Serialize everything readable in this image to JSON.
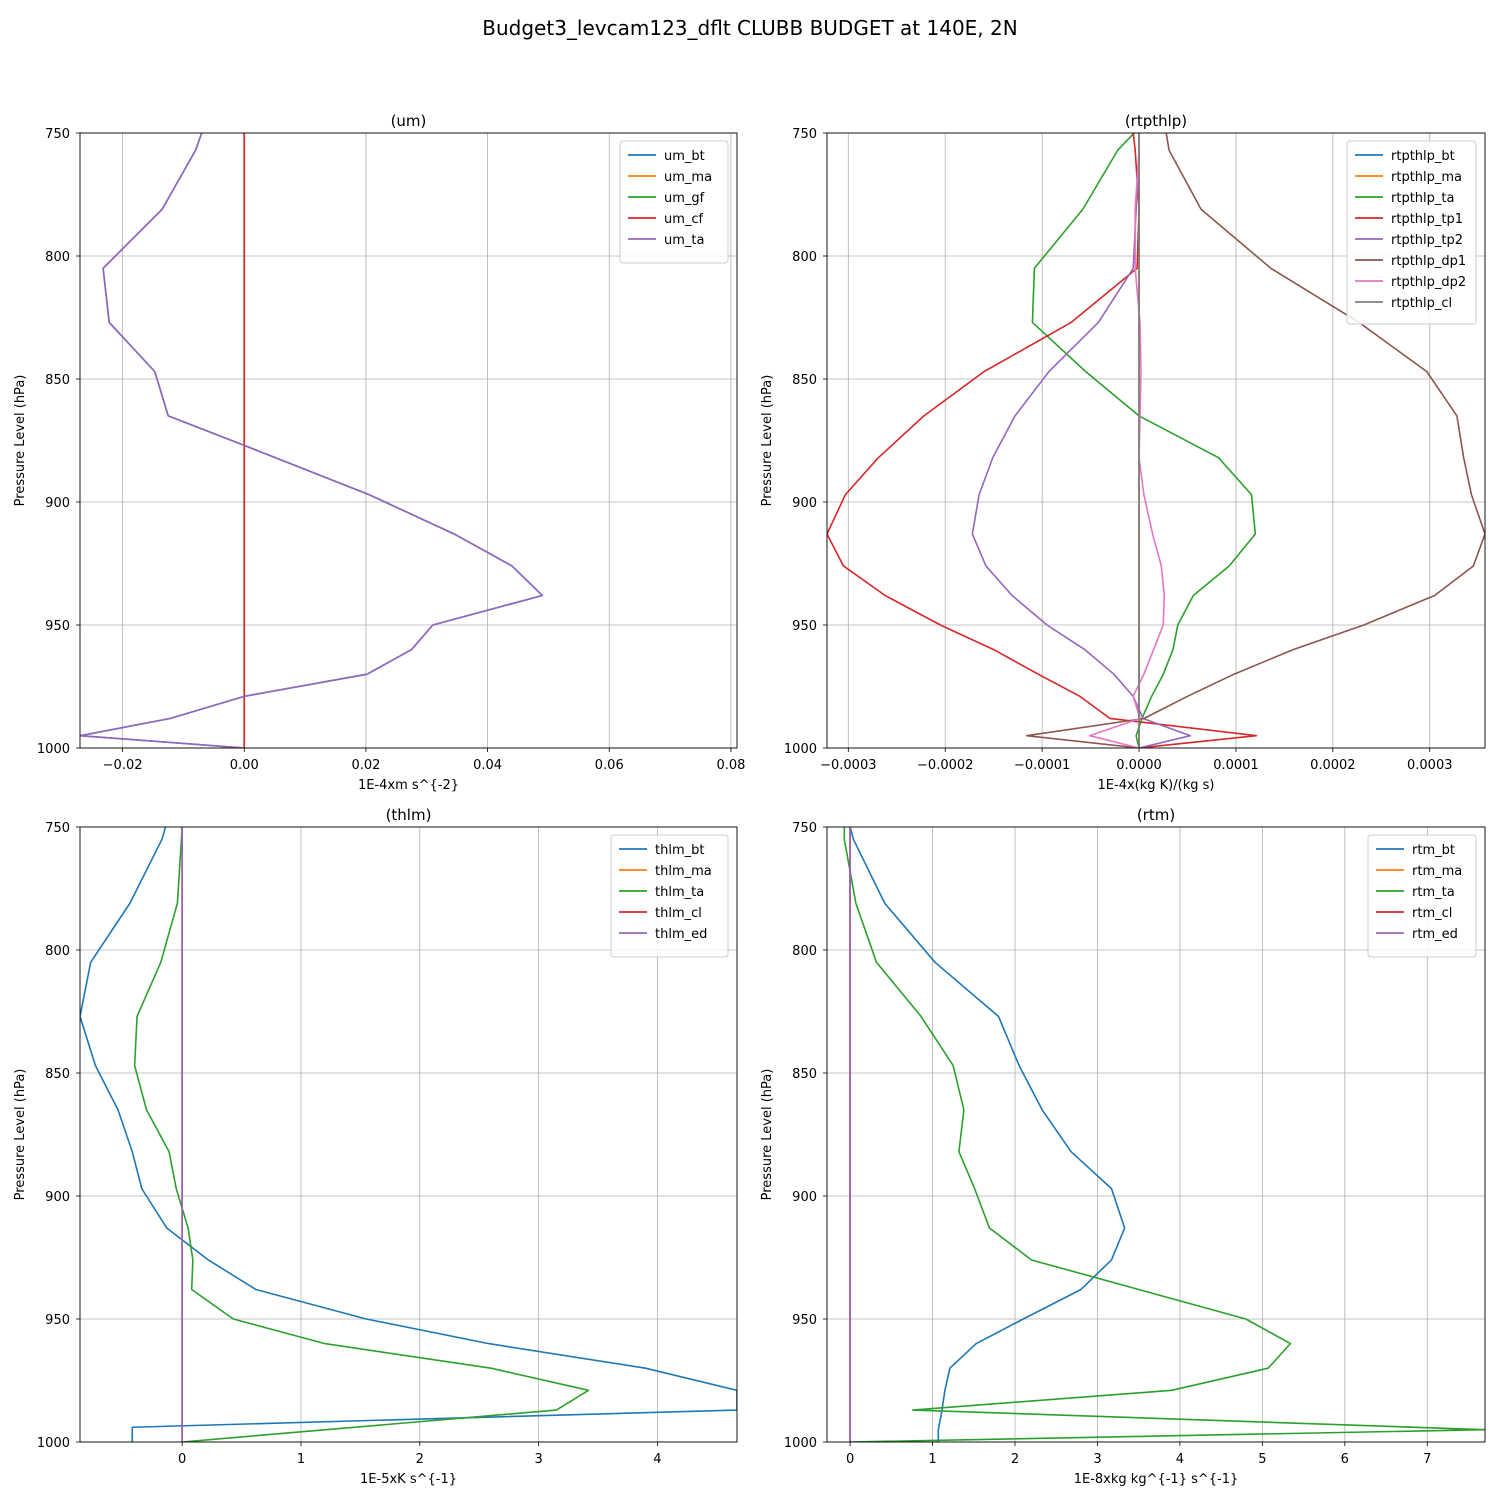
{
  "title": "Budget3_levcam123_dflt CLUBB BUDGET at 140E, 2N",
  "colors": {
    "blue": "#1f77b4",
    "orange": "#ff7f0e",
    "green": "#2ca02c",
    "red": "#d62728",
    "purple": "#9467bd",
    "brown": "#8c564b",
    "pink": "#e377c2",
    "gray": "#7f7f7f"
  },
  "chart_data": [
    {
      "type": "line",
      "title": "(um)",
      "xlabel": "1E-4xm s^{-2}",
      "ylabel": "Pressure Level (hPa)",
      "xlim": [
        -0.027,
        0.081
      ],
      "ylim": [
        1000,
        750
      ],
      "xticks": [
        -0.02,
        0.0,
        0.02,
        0.04,
        0.06,
        0.08
      ],
      "xtick_labels": [
        "−0.02",
        "0.00",
        "0.02",
        "0.04",
        "0.06",
        "0.08"
      ],
      "yticks": [
        750,
        800,
        850,
        900,
        950,
        1000
      ],
      "ytick_labels": [
        "750",
        "800",
        "850",
        "900",
        "950",
        "1000"
      ],
      "grid": true,
      "legend": "top-right",
      "y": [
        750,
        757,
        781,
        805,
        827,
        847,
        865,
        877,
        897,
        913,
        926,
        938,
        950,
        960,
        970,
        979,
        988,
        995,
        1000
      ],
      "series": [
        {
          "name": "um_bt",
          "color": "blue",
          "x": [
            -0.007,
            -0.008,
            -0.0135,
            -0.0232,
            -0.0222,
            -0.0147,
            -0.0125,
            0.0,
            0.0205,
            0.0345,
            0.044,
            0.049,
            0.031,
            0.0275,
            0.0202,
            0.0,
            -0.0122,
            -0.027,
            0.0
          ]
        },
        {
          "name": "um_ma",
          "color": "orange",
          "x": [
            0,
            0,
            0,
            0,
            0,
            0,
            0,
            0,
            0,
            0,
            0,
            0,
            0,
            0,
            0,
            0,
            0,
            0,
            0
          ]
        },
        {
          "name": "um_gf",
          "color": "green",
          "x": [
            0,
            0,
            0,
            0,
            0,
            0,
            0,
            0,
            0,
            0,
            0,
            0,
            0,
            0,
            0,
            0,
            0,
            0,
            0
          ]
        },
        {
          "name": "um_cf",
          "color": "red",
          "x": [
            0,
            0,
            0,
            0,
            0,
            0,
            0,
            0,
            0,
            0,
            0,
            0,
            0,
            0,
            0,
            0,
            0,
            0,
            0
          ]
        },
        {
          "name": "um_ta",
          "color": "purple",
          "x": [
            -0.007,
            -0.008,
            -0.0135,
            -0.0232,
            -0.0222,
            -0.0147,
            -0.0125,
            0.0,
            0.0205,
            0.0345,
            0.044,
            0.049,
            0.031,
            0.0275,
            0.0202,
            0.0,
            -0.0122,
            -0.027,
            0.0
          ]
        }
      ]
    },
    {
      "type": "line",
      "title": "(rtpthlp)",
      "xlabel": "1E-4x(kg K)/(kg s)",
      "ylabel": "Pressure Level (hPa)",
      "xlim": [
        -0.000322,
        0.000357
      ],
      "ylim": [
        1000,
        750
      ],
      "xticks": [
        -0.0003,
        -0.0002,
        -0.0001,
        0.0,
        0.0001,
        0.0002,
        0.0003
      ],
      "xtick_labels": [
        "−0.0003",
        "−0.0002",
        "−0.0001",
        "0.0000",
        "0.0001",
        "0.0002",
        "0.0003"
      ],
      "yticks": [
        750,
        800,
        850,
        900,
        950,
        1000
      ],
      "ytick_labels": [
        "750",
        "800",
        "850",
        "900",
        "950",
        "1000"
      ],
      "grid": true,
      "legend": "top-right",
      "y": [
        750,
        757,
        781,
        805,
        827,
        847,
        865,
        882,
        897,
        913,
        926,
        938,
        950,
        960,
        970,
        979,
        988,
        995,
        1000
      ],
      "series": [
        {
          "name": "rtpthlp_bt",
          "color": "blue",
          "x": [
            0,
            0,
            0,
            0,
            0,
            0,
            0,
            0,
            0,
            0,
            0,
            0,
            0,
            0,
            0,
            0,
            0,
            0,
            0
          ]
        },
        {
          "name": "rtpthlp_ma",
          "color": "orange",
          "x": [
            0,
            0,
            0,
            0,
            0,
            0,
            0,
            0,
            0,
            0,
            0,
            0,
            0,
            0,
            0,
            0,
            0,
            0,
            0
          ]
        },
        {
          "name": "rtpthlp_ta",
          "color": "green",
          "x": [
            -5e-06,
            -2.2e-05,
            -5.8e-05,
            -0.000108,
            -0.00011,
            -5.5e-05,
            0.0,
            8.2e-05,
            0.000116,
            0.00012,
            9.3e-05,
            5.6e-05,
            4e-05,
            3.5e-05,
            2.5e-05,
            1.3e-05,
            3e-06,
            -3e-06,
            0.0
          ]
        },
        {
          "name": "rtpthlp_tp1",
          "color": "red",
          "x": [
            -6e-06,
            -4e-06,
            0.0,
            -2e-06,
            -7e-05,
            -0.00016,
            -0.000222,
            -0.000269,
            -0.000303,
            -0.000322,
            -0.000305,
            -0.000262,
            -0.000205,
            -0.00015,
            -0.000104,
            -6.1e-05,
            -3e-05,
            0.000121,
            0.0
          ]
        },
        {
          "name": "rtpthlp_tp2",
          "color": "purple",
          "x": [
            0.0,
            0.0,
            -3e-06,
            -6e-06,
            -4.2e-05,
            -9.3e-05,
            -0.000128,
            -0.000151,
            -0.000165,
            -0.000172,
            -0.000158,
            -0.000131,
            -9.5e-05,
            -5.6e-05,
            -2.6e-05,
            -6e-06,
            4e-06,
            5.3e-05,
            0.0
          ]
        },
        {
          "name": "rtpthlp_dp1",
          "color": "brown",
          "x": [
            2.8e-05,
            3.1e-05,
            6.4e-05,
            0.000136,
            0.000227,
            0.000297,
            0.000328,
            0.000335,
            0.000343,
            0.000357,
            0.000345,
            0.000305,
            0.000232,
            0.000159,
            9.8e-05,
            5e-05,
            5e-06,
            -0.000116,
            0.0
          ]
        },
        {
          "name": "rtpthlp_dp2",
          "color": "pink",
          "x": [
            0.0,
            0.0,
            -4e-06,
            -4e-06,
            1e-06,
            2e-06,
            1e-06,
            0.0,
            5e-06,
            1.4e-05,
            2.3e-05,
            2.6e-05,
            2.5e-05,
            1.5e-05,
            5e-06,
            -6e-06,
            1e-06,
            -5.1e-05,
            0.0
          ]
        },
        {
          "name": "rtpthlp_cl",
          "color": "gray",
          "x": [
            0,
            0,
            0,
            0,
            0,
            0,
            0,
            0,
            0,
            0,
            0,
            0,
            0,
            0,
            0,
            0,
            0,
            0,
            0
          ]
        }
      ]
    },
    {
      "type": "line",
      "title": "(thlm)",
      "xlabel": "1E-5xK s^{-1}",
      "ylabel": "Pressure Level (hPa)",
      "xlim": [
        -0.86,
        4.67
      ],
      "ylim": [
        1000,
        750
      ],
      "xticks": [
        0,
        1,
        2,
        3,
        4
      ],
      "xtick_labels": [
        "0",
        "1",
        "2",
        "3",
        "4"
      ],
      "yticks": [
        750,
        800,
        850,
        900,
        950,
        1000
      ],
      "ytick_labels": [
        "750",
        "800",
        "850",
        "900",
        "950",
        "1000"
      ],
      "grid": true,
      "legend": "top-right",
      "series": [
        {
          "name": "thlm_bt",
          "color": "blue",
          "y": [
            750,
            755,
            781,
            805,
            827,
            847,
            865,
            882,
            897,
            913,
            926,
            938,
            950,
            960,
            970,
            979,
            987,
            994,
            995,
            1000
          ],
          "x": [
            -0.14,
            -0.17,
            -0.44,
            -0.77,
            -0.86,
            -0.73,
            -0.54,
            -0.42,
            -0.34,
            -0.13,
            0.22,
            0.62,
            1.55,
            2.58,
            3.9,
            4.67,
            4.67,
            -0.42,
            -0.42,
            -0.42
          ]
        },
        {
          "name": "thlm_ma",
          "color": "orange",
          "y": [
            750,
            1000
          ],
          "x": [
            0,
            0
          ]
        },
        {
          "name": "thlm_ta",
          "color": "green",
          "y": [
            750,
            781,
            805,
            827,
            847,
            865,
            882,
            897,
            913,
            926,
            938,
            950,
            960,
            970,
            979,
            987,
            1000
          ],
          "x": [
            0.0,
            -0.04,
            -0.18,
            -0.38,
            -0.4,
            -0.3,
            -0.11,
            -0.05,
            0.05,
            0.09,
            0.08,
            0.43,
            1.2,
            2.6,
            3.42,
            3.15,
            0.0
          ]
        },
        {
          "name": "thlm_cl",
          "color": "red",
          "y": [
            750,
            1000
          ],
          "x": [
            0,
            0
          ]
        },
        {
          "name": "thlm_ed",
          "color": "purple",
          "y": [
            750,
            1000
          ],
          "x": [
            0,
            0
          ]
        }
      ]
    },
    {
      "type": "line",
      "title": "(rtm)",
      "xlabel": "1E-8xkg kg^{-1} s^{-1}",
      "ylabel": "Pressure Level (hPa)",
      "xlim": [
        -0.28,
        7.7
      ],
      "ylim": [
        1000,
        750
      ],
      "xticks": [
        0,
        1,
        2,
        3,
        4,
        5,
        6,
        7
      ],
      "xtick_labels": [
        "0",
        "1",
        "2",
        "3",
        "4",
        "5",
        "6",
        "7"
      ],
      "yticks": [
        750,
        800,
        850,
        900,
        950,
        1000
      ],
      "ytick_labels": [
        "750",
        "800",
        "850",
        "900",
        "950",
        "1000"
      ],
      "grid": true,
      "legend": "top-right",
      "series": [
        {
          "name": "rtm_bt",
          "color": "blue",
          "y": [
            750,
            755,
            781,
            805,
            827,
            847,
            865,
            882,
            897,
            913,
            926,
            938,
            950,
            960,
            970,
            979,
            988,
            995,
            1000
          ],
          "x": [
            0.0,
            0.04,
            0.42,
            1.03,
            1.8,
            2.05,
            2.33,
            2.68,
            3.17,
            3.33,
            3.17,
            2.8,
            2.1,
            1.53,
            1.21,
            1.15,
            1.11,
            1.07,
            1.07
          ]
        },
        {
          "name": "rtm_ma",
          "color": "orange",
          "y": [
            750,
            1000
          ],
          "x": [
            0,
            0
          ]
        },
        {
          "name": "rtm_ta",
          "color": "green",
          "y": [
            750,
            755,
            781,
            805,
            827,
            847,
            865,
            882,
            897,
            913,
            926,
            950,
            960,
            970,
            979,
            987,
            995,
            1000
          ],
          "x": [
            -0.07,
            -0.07,
            0.07,
            0.32,
            0.86,
            1.25,
            1.38,
            1.32,
            1.51,
            1.69,
            2.2,
            4.8,
            5.34,
            5.07,
            3.9,
            0.76,
            7.7,
            0.0
          ]
        },
        {
          "name": "rtm_cl",
          "color": "red",
          "y": [
            750,
            1000
          ],
          "x": [
            0,
            0
          ]
        },
        {
          "name": "rtm_ed",
          "color": "purple",
          "y": [
            750,
            1000
          ],
          "x": [
            0,
            0
          ]
        }
      ]
    }
  ]
}
